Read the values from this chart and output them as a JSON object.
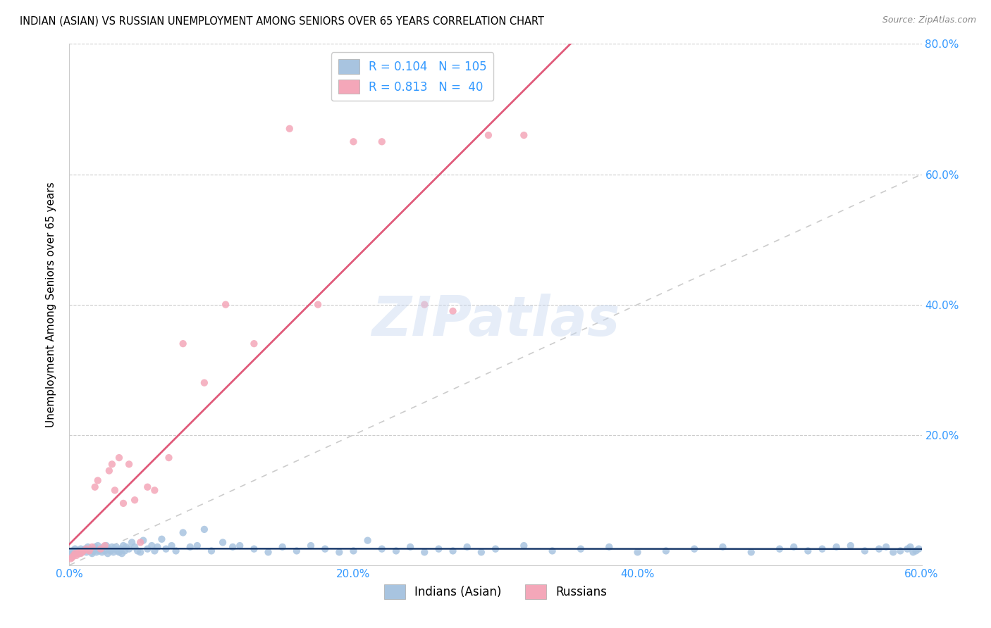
{
  "title": "INDIAN (ASIAN) VS RUSSIAN UNEMPLOYMENT AMONG SENIORS OVER 65 YEARS CORRELATION CHART",
  "source": "Source: ZipAtlas.com",
  "ylabel": "Unemployment Among Seniors over 65 years",
  "xlim": [
    0.0,
    0.6
  ],
  "ylim": [
    0.0,
    0.8
  ],
  "xtick_labels": [
    "0.0%",
    "20.0%",
    "40.0%",
    "60.0%"
  ],
  "xtick_vals": [
    0.0,
    0.2,
    0.4,
    0.6
  ],
  "ytick_vals": [
    0.0,
    0.2,
    0.4,
    0.6,
    0.8
  ],
  "ytick_labels_right": [
    "",
    "20.0%",
    "40.0%",
    "60.0%",
    "80.0%"
  ],
  "indian_color": "#a8c4e0",
  "russian_color": "#f4a7b9",
  "indian_line_color": "#1a3a6b",
  "russian_line_color": "#e05a7a",
  "diagonal_color": "#cccccc",
  "R_indian": 0.104,
  "N_indian": 105,
  "R_russian": 0.813,
  "N_russian": 40,
  "legend_label_indian": "Indians (Asian)",
  "legend_label_russian": "Russians",
  "watermark": "ZIPatlas",
  "indian_x": [
    0.001,
    0.002,
    0.003,
    0.004,
    0.005,
    0.006,
    0.007,
    0.008,
    0.009,
    0.01,
    0.011,
    0.012,
    0.013,
    0.014,
    0.015,
    0.016,
    0.017,
    0.018,
    0.019,
    0.02,
    0.021,
    0.022,
    0.023,
    0.024,
    0.025,
    0.026,
    0.027,
    0.028,
    0.029,
    0.03,
    0.031,
    0.032,
    0.033,
    0.034,
    0.035,
    0.036,
    0.037,
    0.038,
    0.039,
    0.04,
    0.042,
    0.044,
    0.046,
    0.048,
    0.05,
    0.052,
    0.055,
    0.058,
    0.06,
    0.062,
    0.065,
    0.068,
    0.072,
    0.075,
    0.08,
    0.085,
    0.09,
    0.095,
    0.1,
    0.108,
    0.115,
    0.12,
    0.13,
    0.14,
    0.15,
    0.16,
    0.17,
    0.18,
    0.19,
    0.2,
    0.21,
    0.22,
    0.23,
    0.24,
    0.25,
    0.26,
    0.27,
    0.28,
    0.29,
    0.3,
    0.32,
    0.34,
    0.36,
    0.38,
    0.4,
    0.42,
    0.44,
    0.46,
    0.48,
    0.5,
    0.51,
    0.52,
    0.53,
    0.54,
    0.55,
    0.56,
    0.57,
    0.575,
    0.58,
    0.585,
    0.59,
    0.592,
    0.594,
    0.596,
    0.598
  ],
  "indian_y": [
    0.02,
    0.022,
    0.018,
    0.025,
    0.02,
    0.022,
    0.018,
    0.025,
    0.02,
    0.022,
    0.025,
    0.02,
    0.028,
    0.022,
    0.025,
    0.018,
    0.022,
    0.028,
    0.02,
    0.03,
    0.022,
    0.025,
    0.02,
    0.028,
    0.022,
    0.03,
    0.018,
    0.025,
    0.022,
    0.028,
    0.02,
    0.025,
    0.028,
    0.022,
    0.02,
    0.025,
    0.018,
    0.03,
    0.022,
    0.028,
    0.025,
    0.035,
    0.028,
    0.022,
    0.02,
    0.038,
    0.025,
    0.03,
    0.022,
    0.028,
    0.04,
    0.025,
    0.03,
    0.022,
    0.05,
    0.028,
    0.03,
    0.055,
    0.022,
    0.035,
    0.028,
    0.03,
    0.025,
    0.02,
    0.028,
    0.022,
    0.03,
    0.025,
    0.02,
    0.022,
    0.038,
    0.025,
    0.022,
    0.028,
    0.02,
    0.025,
    0.022,
    0.028,
    0.02,
    0.025,
    0.03,
    0.022,
    0.025,
    0.028,
    0.02,
    0.022,
    0.025,
    0.028,
    0.02,
    0.025,
    0.028,
    0.022,
    0.025,
    0.028,
    0.03,
    0.022,
    0.025,
    0.028,
    0.02,
    0.022,
    0.025,
    0.028,
    0.02,
    0.022,
    0.025
  ],
  "russian_x": [
    0.001,
    0.002,
    0.003,
    0.004,
    0.005,
    0.006,
    0.007,
    0.008,
    0.009,
    0.01,
    0.012,
    0.014,
    0.016,
    0.018,
    0.02,
    0.022,
    0.025,
    0.028,
    0.03,
    0.032,
    0.035,
    0.038,
    0.042,
    0.046,
    0.05,
    0.055,
    0.06,
    0.07,
    0.08,
    0.095,
    0.11,
    0.13,
    0.155,
    0.175,
    0.2,
    0.22,
    0.25,
    0.27,
    0.295,
    0.32
  ],
  "russian_y": [
    0.01,
    0.012,
    0.015,
    0.018,
    0.015,
    0.018,
    0.02,
    0.018,
    0.02,
    0.022,
    0.025,
    0.022,
    0.028,
    0.12,
    0.13,
    0.025,
    0.03,
    0.145,
    0.155,
    0.115,
    0.165,
    0.095,
    0.155,
    0.1,
    0.035,
    0.12,
    0.115,
    0.165,
    0.34,
    0.28,
    0.4,
    0.34,
    0.67,
    0.4,
    0.65,
    0.65,
    0.4,
    0.39,
    0.66,
    0.66
  ]
}
